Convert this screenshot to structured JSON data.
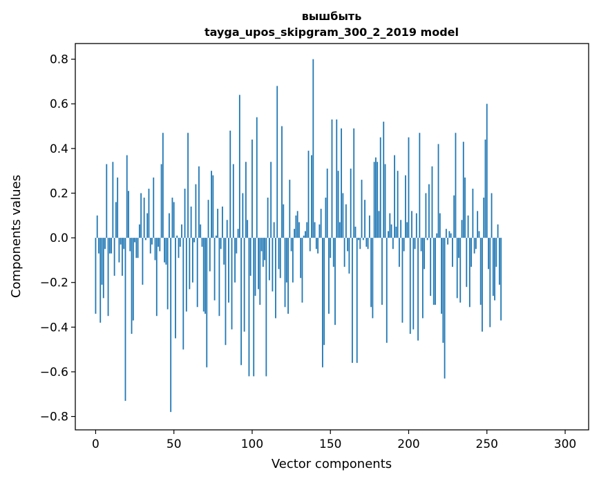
{
  "chart_data": {
    "type": "bar",
    "title_line1": "вышбыть",
    "title_line2": "tayga_upos_skipgram_300_2_2019 model",
    "xlabel": "Vector components",
    "ylabel": "Components values",
    "xlim": [
      -13,
      315
    ],
    "ylim": [
      -0.86,
      0.87
    ],
    "xticks": [
      0,
      50,
      100,
      150,
      200,
      250,
      300
    ],
    "xtick_labels": [
      "0",
      "50",
      "100",
      "150",
      "200",
      "250",
      "300"
    ],
    "yticks": [
      -0.8,
      -0.6,
      -0.4,
      -0.2,
      0.0,
      0.2,
      0.4,
      0.6,
      0.8
    ],
    "ytick_labels": [
      "−0.8",
      "−0.6",
      "−0.4",
      "−0.2",
      "0.0",
      "0.2",
      "0.4",
      "0.6",
      "0.8"
    ],
    "grid": false,
    "bar_color": "#1f77b4",
    "series": [
      {
        "values": [
          -0.34,
          0.1,
          -0.07,
          -0.38,
          -0.21,
          -0.27,
          -0.05,
          0.33,
          -0.35,
          -0.07,
          -0.07,
          0.34,
          -0.17,
          0.16,
          0.27,
          -0.11,
          -0.03,
          -0.17,
          -0.05,
          -0.73,
          0.37,
          0.21,
          -0.06,
          -0.43,
          -0.37,
          -0.02,
          -0.09,
          -0.09,
          0.06,
          0.2,
          -0.21,
          0.18,
          -0.01,
          0.11,
          0.22,
          -0.07,
          -0.03,
          0.27,
          -0.1,
          -0.35,
          -0.04,
          -0.06,
          0.33,
          0.47,
          -0.11,
          -0.12,
          -0.32,
          0.11,
          -0.78,
          0.18,
          0.16,
          -0.45,
          0.01,
          -0.09,
          -0.04,
          0.06,
          -0.5,
          0.22,
          -0.33,
          0.47,
          -0.23,
          0.14,
          -0.2,
          -0.02,
          0.24,
          -0.31,
          0.32,
          0.06,
          -0.04,
          -0.33,
          -0.34,
          -0.58,
          0.17,
          -0.15,
          0.3,
          0.28,
          -0.28,
          0.01,
          0.13,
          -0.35,
          -0.05,
          0.14,
          -0.12,
          -0.48,
          0.08,
          -0.29,
          0.48,
          -0.41,
          0.33,
          -0.2,
          -0.07,
          0.04,
          0.64,
          -0.57,
          0.2,
          -0.42,
          0.34,
          0.08,
          -0.62,
          -0.17,
          0.44,
          -0.62,
          -0.26,
          0.54,
          -0.23,
          -0.3,
          -0.06,
          -0.13,
          -0.1,
          -0.62,
          0.18,
          -0.19,
          0.34,
          -0.24,
          0.07,
          -0.36,
          0.68,
          -0.14,
          -0.18,
          0.5,
          0.15,
          -0.31,
          -0.2,
          -0.34,
          0.26,
          -0.06,
          -0.2,
          0.04,
          0.1,
          0.12,
          0.07,
          -0.18,
          -0.29,
          0.01,
          0.03,
          0.07,
          0.39,
          -0.06,
          0.37,
          0.8,
          0.07,
          -0.05,
          -0.07,
          0.06,
          0.13,
          -0.58,
          -0.48,
          0.18,
          0.31,
          -0.34,
          -0.09,
          0.53,
          -0.13,
          -0.39,
          0.53,
          0.3,
          0.07,
          0.49,
          0.2,
          -0.13,
          0.15,
          -0.06,
          -0.16,
          0.31,
          -0.56,
          0.49,
          0.05,
          -0.56,
          -0.01,
          -0.05,
          0.26,
          -0.01,
          0.17,
          -0.04,
          -0.05,
          0.1,
          -0.31,
          -0.36,
          0.34,
          0.36,
          0.34,
          0.12,
          0.45,
          -0.3,
          0.52,
          0.33,
          -0.47,
          0.03,
          0.11,
          0.06,
          -0.05,
          0.37,
          0.05,
          0.3,
          -0.13,
          0.08,
          -0.38,
          -0.06,
          0.28,
          0.07,
          0.45,
          -0.43,
          0.12,
          -0.41,
          -0.05,
          0.11,
          -0.46,
          0.47,
          -0.06,
          -0.36,
          -0.14,
          0.2,
          -0.01,
          0.24,
          -0.26,
          0.32,
          -0.3,
          -0.3,
          0.02,
          0.42,
          0.11,
          -0.34,
          -0.47,
          -0.63,
          0.04,
          -0.03,
          0.03,
          0.02,
          -0.13,
          0.19,
          0.47,
          -0.27,
          -0.09,
          -0.29,
          0.08,
          0.43,
          0.27,
          -0.22,
          0.1,
          -0.31,
          -0.13,
          0.22,
          -0.07,
          -0.05,
          0.12,
          0.03,
          -0.3,
          -0.42,
          0.18,
          0.44,
          0.6,
          -0.14,
          -0.4,
          0.2,
          -0.26,
          -0.28,
          -0.13,
          0.06,
          -0.21,
          -0.37
        ]
      }
    ]
  }
}
